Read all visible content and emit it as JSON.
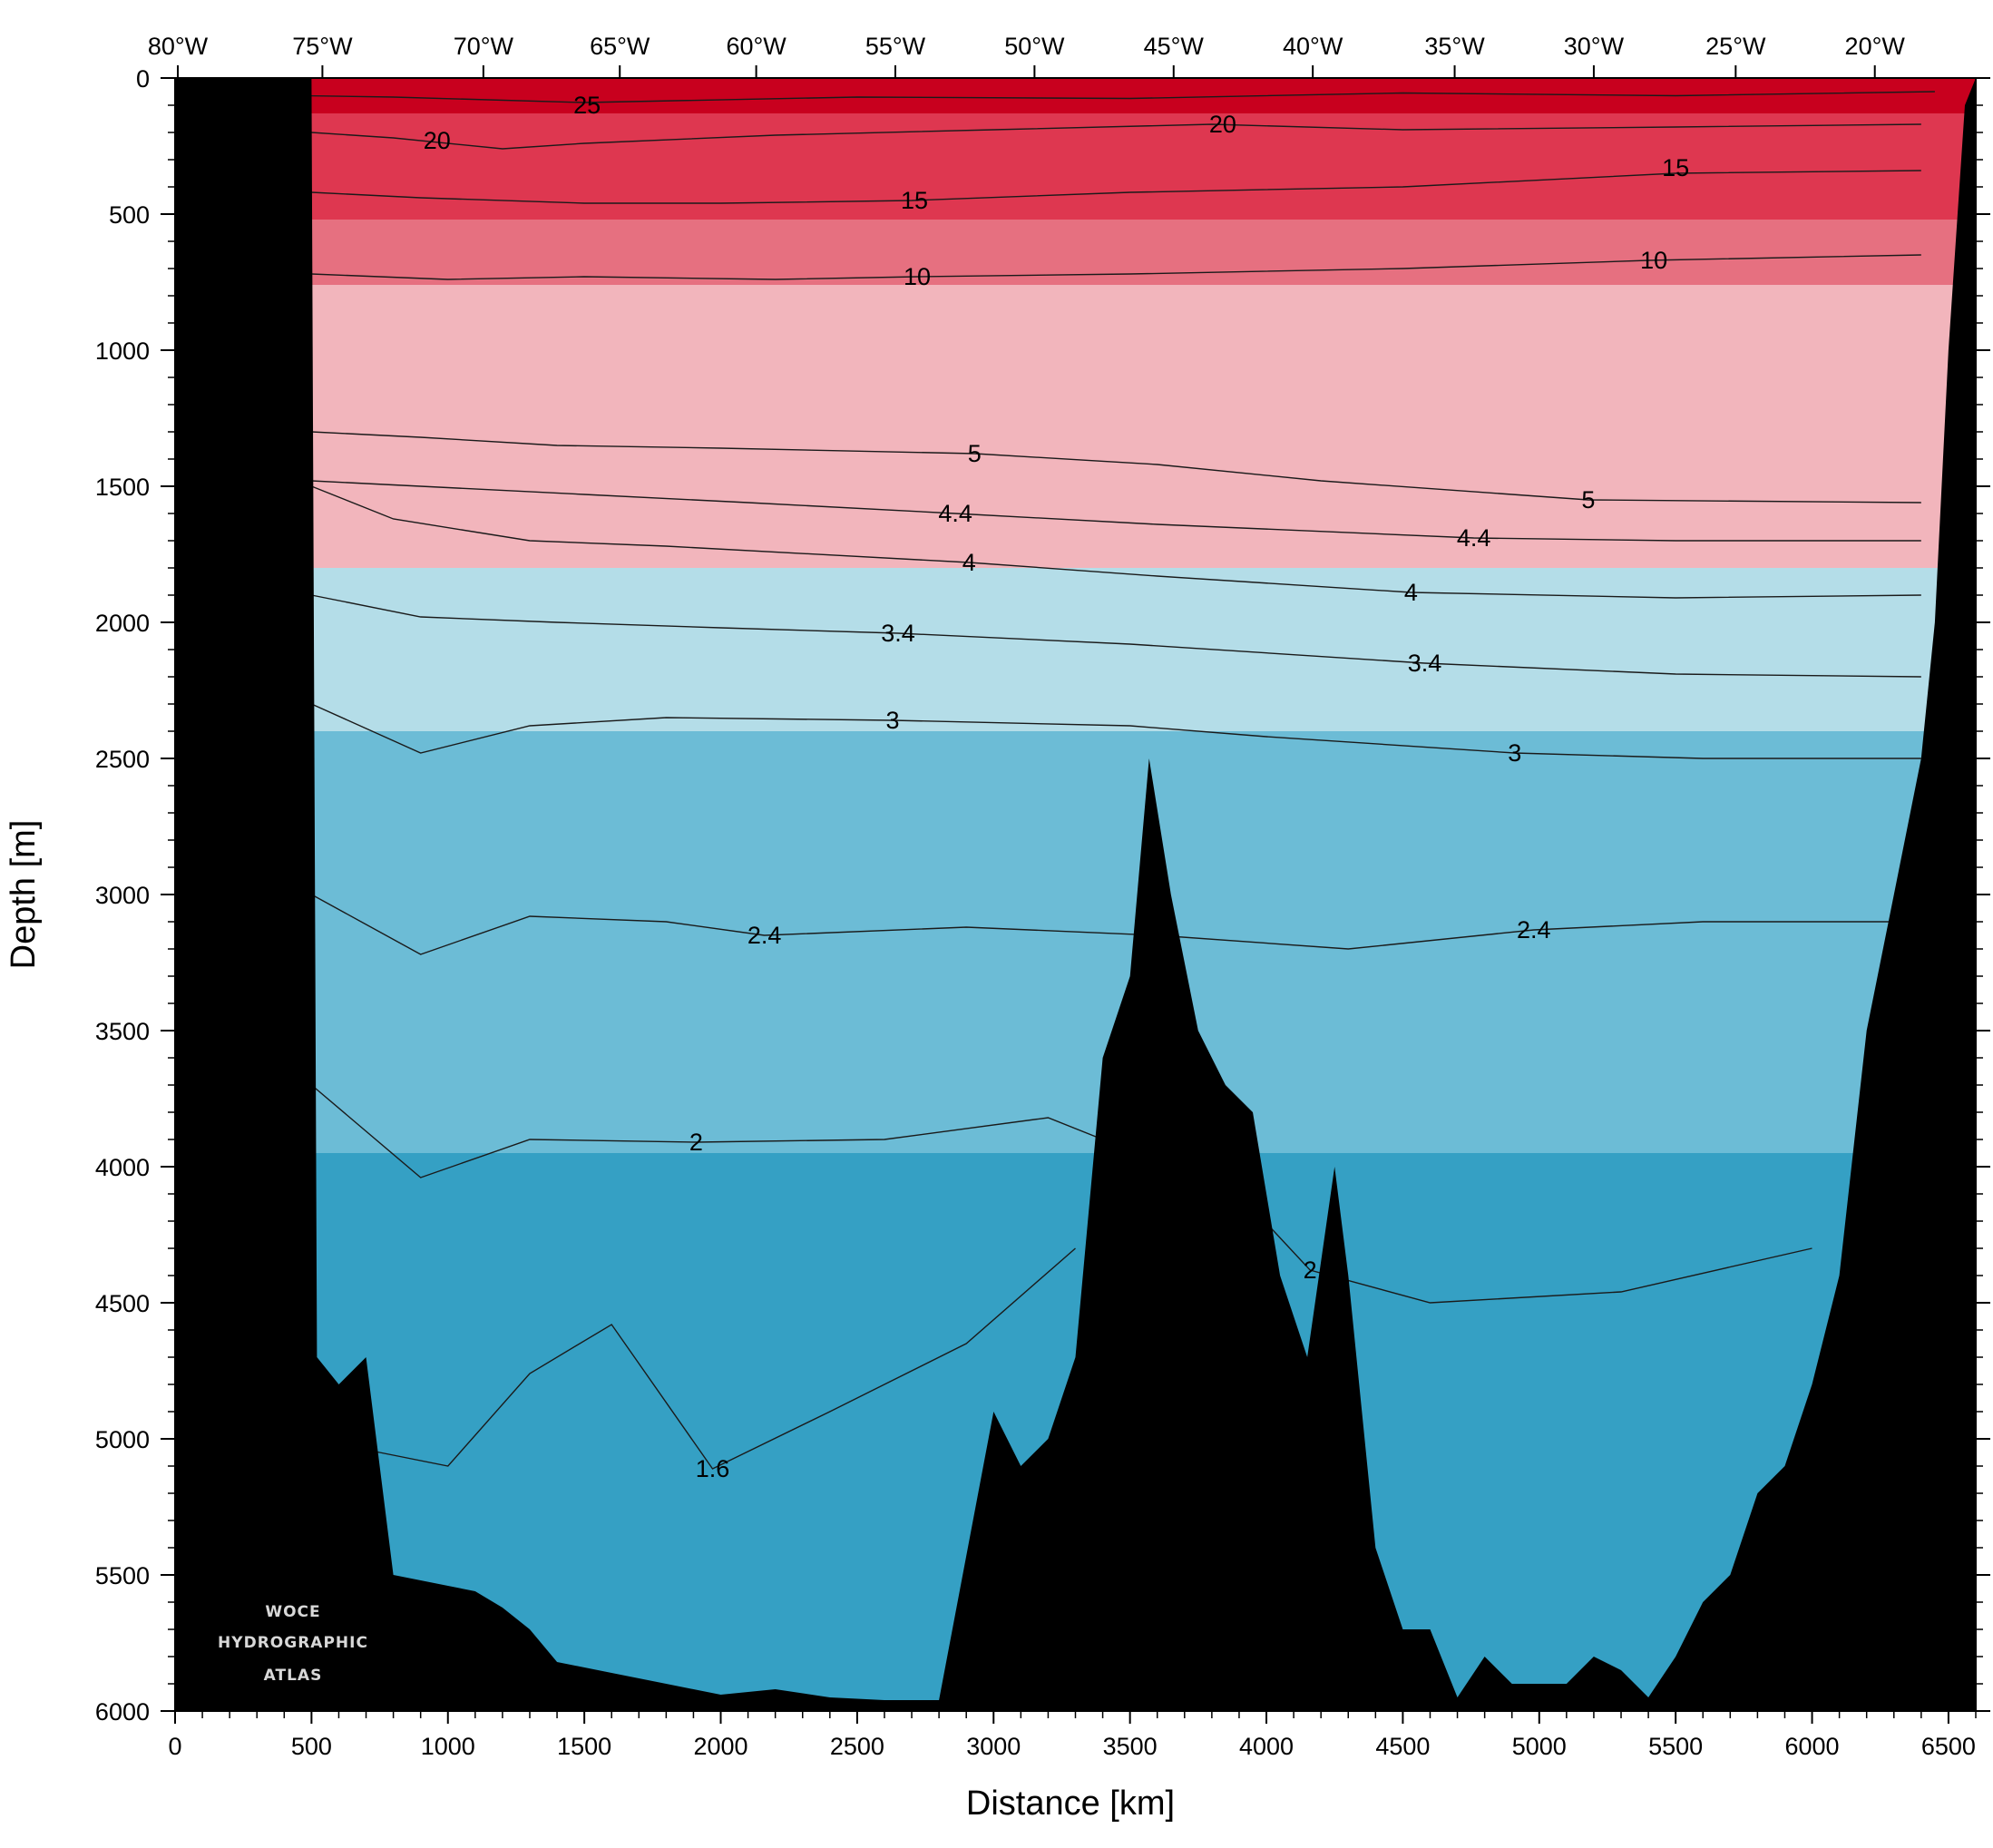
{
  "chart_data": {
    "type": "heatmap",
    "title": "",
    "xlabel": "Distance [km]",
    "ylabel": "Depth [m]",
    "xlim": [
      0,
      6600
    ],
    "ylim": [
      6000,
      0
    ],
    "x_ticks": [
      0,
      500,
      1000,
      1500,
      2000,
      2500,
      3000,
      3500,
      4000,
      4500,
      5000,
      5500,
      6000,
      6500
    ],
    "y_ticks": [
      0,
      500,
      1000,
      1500,
      2000,
      2500,
      3000,
      3500,
      4000,
      4500,
      5000,
      5500,
      6000
    ],
    "top_axis_ticks": [
      {
        "label": "80°W",
        "km": 10
      },
      {
        "label": "75°W",
        "km": 540
      },
      {
        "label": "70°W",
        "km": 1130
      },
      {
        "label": "65°W",
        "km": 1630
      },
      {
        "label": "60°W",
        "km": 2130
      },
      {
        "label": "55°W",
        "km": 2640
      },
      {
        "label": "50°W",
        "km": 3150
      },
      {
        "label": "45°W",
        "km": 3660
      },
      {
        "label": "40°W",
        "km": 4170
      },
      {
        "label": "35°W",
        "km": 4690
      },
      {
        "label": "30°W",
        "km": 5200
      },
      {
        "label": "25°W",
        "km": 5720
      },
      {
        "label": "20°W",
        "km": 6230
      }
    ],
    "color_bands": [
      {
        "range": "> 20",
        "color": "#c8001e",
        "depth_bottom_m": 130
      },
      {
        "range": "15-20",
        "color": "#de3750",
        "depth_bottom_m": 520
      },
      {
        "range": "10-15",
        "color": "#e67080",
        "depth_bottom_m": 760
      },
      {
        "range": "4-10",
        "color": "#f2b5bc",
        "depth_bottom_m": 1800
      },
      {
        "range": "3-4",
        "color": "#b4dde8",
        "depth_bottom_m": 2400
      },
      {
        "range": "2-3",
        "color": "#6cbcd6",
        "depth_bottom_m": 3950
      },
      {
        "range": "< 2",
        "color": "#35a0c4",
        "depth_bottom_m": 6000
      }
    ],
    "contour_levels": [
      25,
      20,
      15,
      10,
      5,
      4.4,
      4,
      3.4,
      3,
      2.4,
      2,
      1.6
    ],
    "contour_labels": [
      {
        "text": "25",
        "x": 1510,
        "y": 100
      },
      {
        "text": "20",
        "x": 960,
        "y": 230
      },
      {
        "text": "20",
        "x": 3840,
        "y": 170
      },
      {
        "text": "15",
        "x": 2710,
        "y": 450
      },
      {
        "text": "15",
        "x": 5500,
        "y": 330
      },
      {
        "text": "10",
        "x": 2720,
        "y": 730
      },
      {
        "text": "10",
        "x": 5420,
        "y": 670
      },
      {
        "text": "5",
        "x": 2930,
        "y": 1380
      },
      {
        "text": "5",
        "x": 5180,
        "y": 1550
      },
      {
        "text": "4.4",
        "x": 2860,
        "y": 1600
      },
      {
        "text": "4.4",
        "x": 4760,
        "y": 1690
      },
      {
        "text": "4",
        "x": 2910,
        "y": 1780
      },
      {
        "text": "4",
        "x": 4530,
        "y": 1890
      },
      {
        "text": "3.4",
        "x": 2650,
        "y": 2040
      },
      {
        "text": "3.4",
        "x": 4580,
        "y": 2150
      },
      {
        "text": "3",
        "x": 2630,
        "y": 2360
      },
      {
        "text": "3",
        "x": 4910,
        "y": 2480
      },
      {
        "text": "2.4",
        "x": 2160,
        "y": 3150
      },
      {
        "text": "2.4",
        "x": 4980,
        "y": 3130
      },
      {
        "text": "2",
        "x": 1910,
        "y": 3910
      },
      {
        "text": "2",
        "x": 4160,
        "y": 4380
      },
      {
        "text": "1.6",
        "x": 1970,
        "y": 5110
      }
    ],
    "contours": [
      {
        "level": 25,
        "x": [
          130,
          800,
          1500,
          2500,
          3500,
          4500,
          5500,
          6450
        ],
        "y": [
          60,
          70,
          90,
          70,
          75,
          55,
          65,
          50
        ]
      },
      {
        "level": 20,
        "x": [
          500,
          800,
          1200,
          1500,
          2200,
          3000,
          3800,
          4500,
          5500,
          6400
        ],
        "y": [
          200,
          220,
          260,
          240,
          210,
          190,
          170,
          190,
          180,
          170
        ]
      },
      {
        "level": 15,
        "x": [
          500,
          900,
          1500,
          2000,
          2700,
          3500,
          4500,
          5500,
          6400
        ],
        "y": [
          420,
          440,
          460,
          460,
          450,
          420,
          400,
          350,
          340
        ]
      },
      {
        "level": 10,
        "x": [
          500,
          1000,
          1500,
          2200,
          2720,
          3500,
          4500,
          5400,
          6400
        ],
        "y": [
          720,
          740,
          730,
          740,
          730,
          720,
          700,
          670,
          650
        ]
      },
      {
        "level": 5,
        "x": [
          500,
          900,
          1400,
          2000,
          2930,
          3600,
          4200,
          5180,
          6400
        ],
        "y": [
          1300,
          1320,
          1350,
          1360,
          1380,
          1420,
          1480,
          1550,
          1560
        ]
      },
      {
        "level": 4.4,
        "x": [
          500,
          900,
          1500,
          2100,
          2860,
          3600,
          4760,
          5500,
          6400
        ],
        "y": [
          1480,
          1500,
          1530,
          1560,
          1600,
          1640,
          1690,
          1700,
          1700
        ]
      },
      {
        "level": 4,
        "x": [
          500,
          800,
          1300,
          1800,
          2910,
          3600,
          4530,
          5500,
          6400
        ],
        "y": [
          1500,
          1620,
          1700,
          1720,
          1780,
          1830,
          1890,
          1910,
          1900
        ]
      },
      {
        "level": 3.4,
        "x": [
          500,
          900,
          1400,
          2000,
          2650,
          3500,
          4580,
          5500,
          6400
        ],
        "y": [
          1900,
          1980,
          2000,
          2020,
          2040,
          2080,
          2150,
          2190,
          2200
        ]
      },
      {
        "level": 3,
        "x": [
          500,
          900,
          1300,
          1800,
          2630,
          3500,
          4000,
          4910,
          5600,
          6400
        ],
        "y": [
          2300,
          2480,
          2380,
          2350,
          2360,
          2380,
          2420,
          2480,
          2500,
          2500
        ]
      },
      {
        "level": 2.4,
        "x": [
          500,
          900,
          1300,
          1800,
          2160,
          2900,
          3600,
          4300,
          4980,
          5600,
          6400
        ],
        "y": [
          3000,
          3220,
          3080,
          3100,
          3150,
          3120,
          3150,
          3200,
          3130,
          3100,
          3100
        ]
      },
      {
        "level": 2,
        "x": [
          500,
          900,
          1300,
          1910,
          2600,
          3200,
          3900,
          4160,
          4600,
          5300,
          6000
        ],
        "y": [
          3700,
          4040,
          3900,
          3910,
          3900,
          3820,
          4100,
          4380,
          4500,
          4460,
          4300
        ]
      },
      {
        "level": 1.6,
        "x": [
          700,
          1000,
          1300,
          1600,
          1970,
          2400,
          2900,
          3300
        ],
        "y": [
          5040,
          5100,
          4760,
          4580,
          5110,
          4900,
          4650,
          4300
        ]
      }
    ],
    "bathymetry": {
      "x": [
        0,
        100,
        150,
        500,
        520,
        600,
        700,
        800,
        900,
        1000,
        1100,
        1200,
        1300,
        1400,
        1600,
        1800,
        2000,
        2200,
        2400,
        2600,
        2800,
        3000,
        3100,
        3200,
        3300,
        3400,
        3500,
        3570,
        3650,
        3750,
        3850,
        3950,
        4050,
        4150,
        4250,
        4300,
        4400,
        4500,
        4600,
        4700,
        4800,
        4900,
        5000,
        5100,
        5200,
        5300,
        5400,
        5500,
        5600,
        5700,
        5800,
        5900,
        6000,
        6100,
        6200,
        6300,
        6400,
        6450,
        6500,
        6560,
        6600
      ],
      "y": [
        0,
        0,
        0,
        0,
        4700,
        4800,
        4700,
        5500,
        5520,
        5540,
        5560,
        5620,
        5700,
        5820,
        5860,
        5900,
        5940,
        5920,
        5950,
        5960,
        5960,
        4900,
        5100,
        5000,
        4700,
        3600,
        3300,
        2500,
        3000,
        3500,
        3700,
        3800,
        4400,
        4700,
        4000,
        4400,
        5400,
        5700,
        5700,
        5950,
        5800,
        5900,
        5900,
        5900,
        5800,
        5850,
        5950,
        5800,
        5600,
        5500,
        5200,
        5100,
        4800,
        4400,
        3500,
        3000,
        2500,
        2000,
        1000,
        100,
        0
      ]
    }
  },
  "watermark": {
    "line1": "WOCE",
    "line2": "HYDROGRAPHIC",
    "line3": "ATLAS"
  }
}
